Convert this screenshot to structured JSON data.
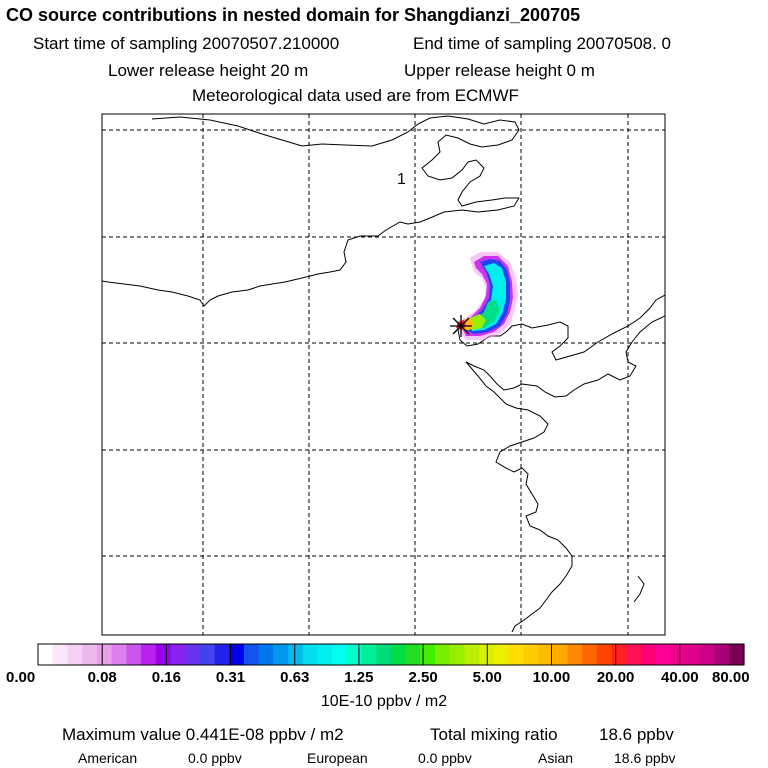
{
  "header": {
    "title": "CO  source contributions in nested domain for Shangdianzi_200705",
    "start_label": "Start time of sampling 20070507.210000",
    "end_label": "End time of sampling 20070508.     0",
    "lower_label": "Lower release height   20 m",
    "upper_label": "Upper release height    0 m",
    "met_label": "Meteorological data used are from ECMWF"
  },
  "map": {
    "region_label": "1",
    "station_marker": "star-marker",
    "gridlines": "dashed"
  },
  "legend": {
    "ticks": [
      "0.00",
      "0.08",
      "0.16",
      "0.31",
      "0.63",
      "1.25",
      "2.50",
      "5.00",
      "10.00",
      "20.00",
      "40.00",
      "80.00"
    ],
    "colors": [
      "#ffffff",
      "#fbe8fb",
      "#f5d0f5",
      "#eeb7ee",
      "#e8a0ea",
      "#dd80ee",
      "#cc55ee",
      "#bb22ee",
      "#9900ee",
      "#8822ee",
      "#6633ee",
      "#4444ee",
      "#2222ee",
      "#0000ee",
      "#1155ee",
      "#0077ee",
      "#0099ee",
      "#00bbee",
      "#00ddee",
      "#00eeee",
      "#00ffee",
      "#00ffcc",
      "#00ee99",
      "#00dd77",
      "#00dd44",
      "#22dd22",
      "#44ee00",
      "#77ee00",
      "#99ee00",
      "#bbee00",
      "#ddee00",
      "#eeee00",
      "#ffdd00",
      "#ffcc00",
      "#ffbb00",
      "#ffaa00",
      "#ff8800",
      "#ff6600",
      "#ff4400",
      "#ff2222",
      "#ff1155",
      "#ff0077",
      "#ff0099",
      "#ee0088",
      "#dd0088",
      "#cc0088",
      "#aa0077",
      "#770055"
    ],
    "units": "10E-10 ppbv / m2"
  },
  "summary": {
    "max_label": "Maximum value  0.441E-08 ppbv / m2",
    "total_label": "Total mixing ratio",
    "total_value": "18.6 ppbv",
    "regions": [
      {
        "name": "American",
        "value": "0.0 ppbv"
      },
      {
        "name": "European",
        "value": "0.0 ppbv"
      },
      {
        "name": "Asian",
        "value": "18.6 ppbv"
      }
    ]
  }
}
